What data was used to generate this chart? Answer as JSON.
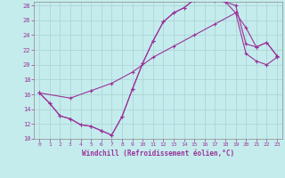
{
  "xlabel": "Windchill (Refroidissement éolien,°C)",
  "ylabel": "",
  "xlim": [
    -0.5,
    23.5
  ],
  "ylim": [
    10,
    28.5
  ],
  "xticks": [
    0,
    1,
    2,
    3,
    4,
    5,
    6,
    7,
    8,
    9,
    10,
    11,
    12,
    13,
    14,
    15,
    16,
    17,
    18,
    19,
    20,
    21,
    22,
    23
  ],
  "yticks": [
    10,
    12,
    14,
    16,
    18,
    20,
    22,
    24,
    26,
    28
  ],
  "background_color": "#c5eced",
  "grid_color": "#b0d8da",
  "line_color": "#993399",
  "curve1_x": [
    0,
    1,
    2,
    3,
    4,
    5,
    6,
    7,
    8,
    9,
    10,
    11,
    12,
    13,
    14,
    15,
    16,
    17,
    18,
    19,
    20,
    21,
    22,
    23
  ],
  "curve1_y": [
    16.2,
    14.8,
    13.1,
    12.7,
    11.9,
    11.7,
    11.1,
    10.5,
    13.0,
    16.7,
    20.2,
    23.2,
    25.8,
    27.0,
    27.7,
    28.8,
    28.9,
    28.7,
    28.5,
    28.0,
    22.8,
    22.4,
    23.0,
    21.2
  ],
  "curve2_x": [
    0,
    1,
    2,
    3,
    4,
    5,
    6,
    7,
    8,
    9,
    10,
    11,
    12,
    13,
    14,
    15,
    16,
    17,
    18,
    19,
    20,
    21,
    22,
    23
  ],
  "curve2_y": [
    16.2,
    14.8,
    13.1,
    12.7,
    11.9,
    11.7,
    11.1,
    10.5,
    13.0,
    16.7,
    20.2,
    23.2,
    25.8,
    27.0,
    27.7,
    28.8,
    28.9,
    28.7,
    28.5,
    27.0,
    25.0,
    22.4,
    23.0,
    21.2
  ],
  "curve3_x": [
    0,
    3,
    5,
    7,
    9,
    11,
    13,
    15,
    17,
    19,
    20,
    21,
    22,
    23
  ],
  "curve3_y": [
    16.2,
    15.5,
    16.5,
    17.5,
    19.0,
    21.0,
    22.5,
    24.0,
    25.5,
    27.0,
    21.5,
    20.5,
    20.0,
    21.0
  ]
}
